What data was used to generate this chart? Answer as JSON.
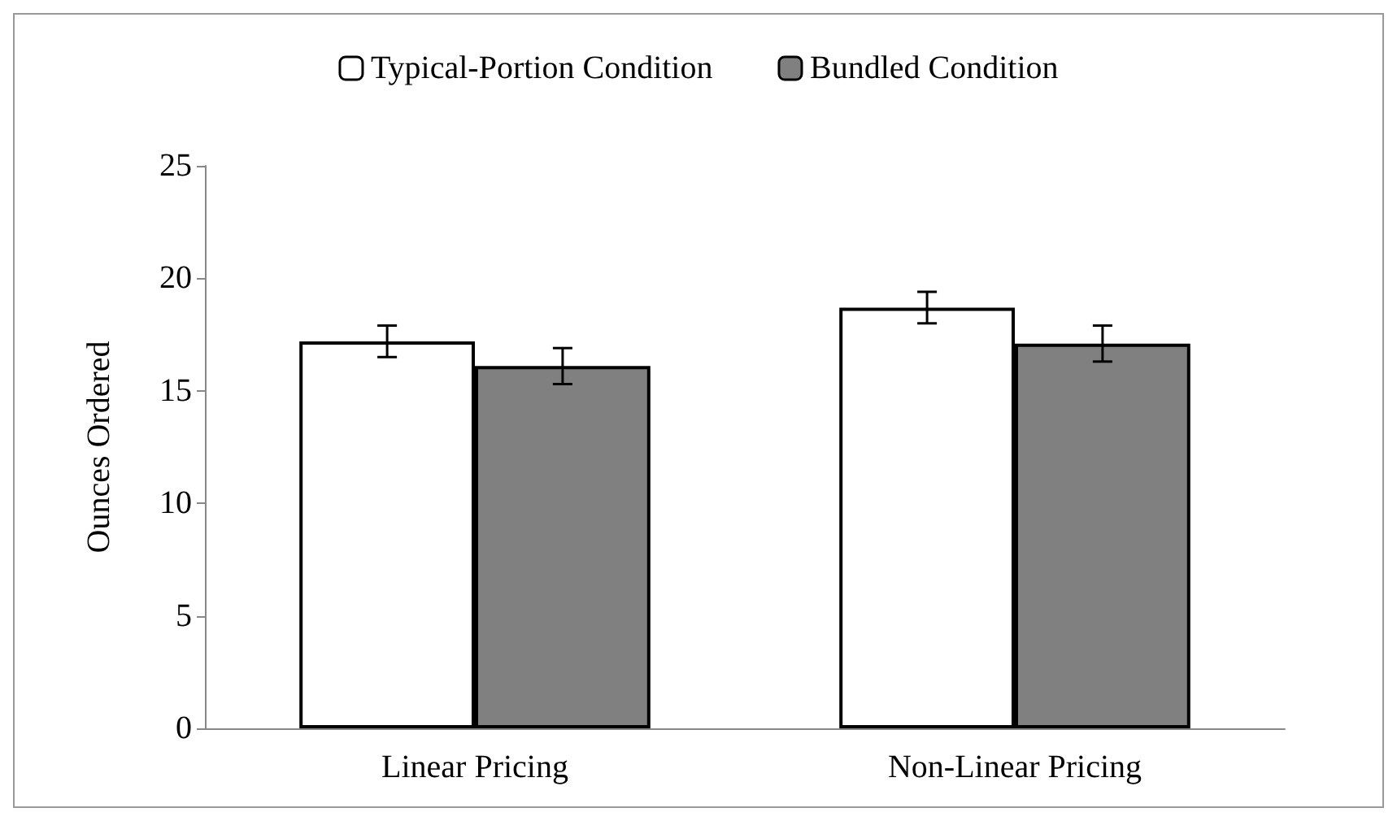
{
  "chart_data": {
    "type": "bar",
    "ylabel": "Ounces Ordered",
    "categories": [
      "Linear Pricing",
      "Non-Linear Pricing"
    ],
    "series": [
      {
        "name": "Typical-Portion Condition",
        "color": "#ffffff",
        "values": [
          17.2,
          18.7
        ],
        "errors": [
          0.7,
          0.7
        ]
      },
      {
        "name": "Bundled Condition",
        "color": "#808080",
        "values": [
          16.1,
          17.1
        ],
        "errors": [
          0.8,
          0.8
        ]
      }
    ],
    "ylim": [
      0,
      25
    ],
    "yticks": [
      0,
      5,
      10,
      15,
      20,
      25
    ],
    "grid": false,
    "legend": "top"
  }
}
